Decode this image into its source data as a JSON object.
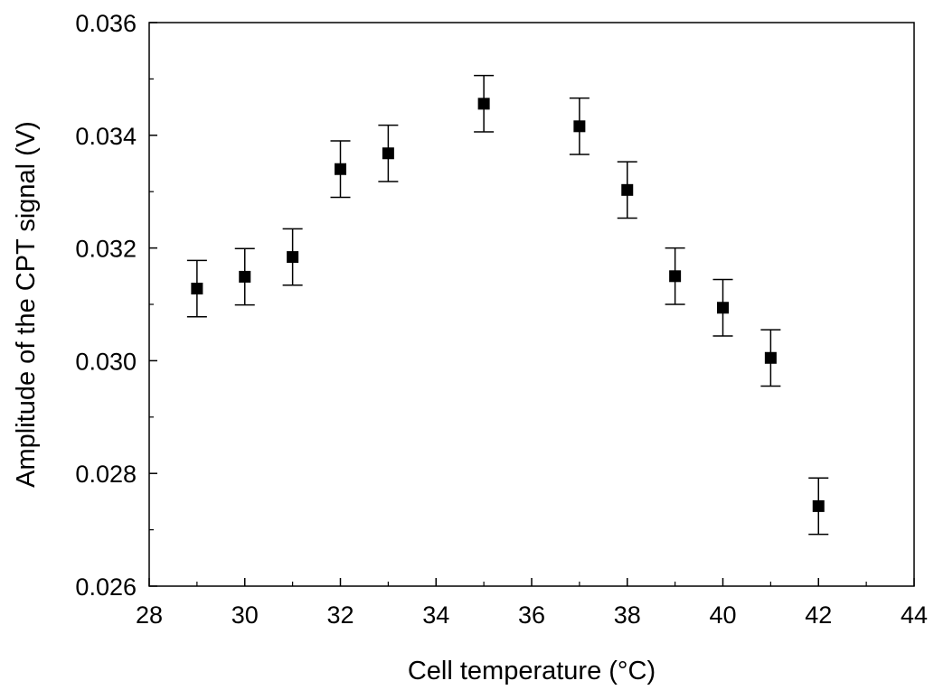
{
  "chart_data": {
    "type": "scatter",
    "title": "",
    "xlabel": "Cell temperature (°C)",
    "ylabel": "Amplitude of the CPT signal (V)",
    "xlim": [
      28,
      44
    ],
    "ylim": [
      0.026,
      0.036
    ],
    "xticks": [
      "28",
      "30",
      "32",
      "34",
      "36",
      "38",
      "40",
      "42",
      "44"
    ],
    "yticks": [
      "0.026",
      "0.028",
      "0.030",
      "0.032",
      "0.034",
      "0.036"
    ],
    "grid": false,
    "legend": "none",
    "marker": "filled-square",
    "color": "#000000",
    "series": [
      {
        "x": [
          29,
          30,
          31,
          32,
          33,
          35,
          37,
          38,
          39,
          40,
          41,
          42
        ],
        "y": [
          0.03128,
          0.03149,
          0.03184,
          0.0334,
          0.03368,
          0.03456,
          0.03416,
          0.03303,
          0.0315,
          0.03094,
          0.03005,
          0.02742
        ],
        "error": [
          0.0005,
          0.0005,
          0.0005,
          0.0005,
          0.0005,
          0.0005,
          0.0005,
          0.0005,
          0.0005,
          0.0005,
          0.0005,
          0.0005
        ]
      }
    ]
  }
}
